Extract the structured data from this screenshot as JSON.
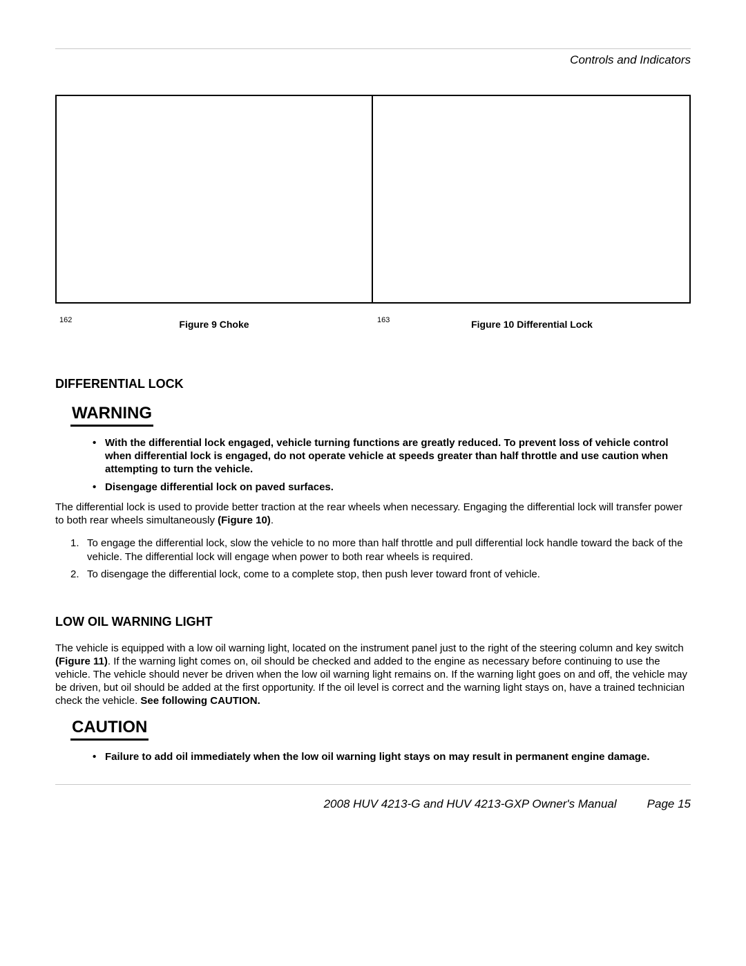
{
  "header": {
    "section_title": "Controls and Indicators"
  },
  "figures": {
    "left": {
      "num": "162",
      "caption": "Figure 9   Choke"
    },
    "right": {
      "num": "163",
      "caption": "Figure 10   Differential Lock"
    }
  },
  "diff_lock": {
    "heading": "DIFFERENTIAL LOCK",
    "warning_label": "WARNING",
    "warning_items": [
      "With the differential lock engaged, vehicle turning functions are greatly reduced. To prevent loss of vehicle control when differential lock is engaged, do not operate vehicle at speeds greater than half throttle and use caution when attempting to turn the vehicle.",
      "Disengage differential lock on paved surfaces."
    ],
    "intro_pre": "The differential lock is used to provide better traction at the rear wheels when necessary. Engaging the differential lock will transfer power to both rear wheels simultaneously ",
    "intro_figref": "(Figure 10)",
    "intro_post": ".",
    "steps": [
      "To engage the differential lock, slow the vehicle to no more than half throttle and pull differential lock handle toward the back of the vehicle. The differential lock will engage when power to both rear wheels is required.",
      "To disengage the differential lock, come to a complete stop, then push lever toward front of vehicle."
    ]
  },
  "low_oil": {
    "heading": "LOW OIL WARNING LIGHT",
    "para_pre": "The vehicle is equipped with a low oil warning light, located on the instrument panel just to the right of the steering column and key switch ",
    "para_figref": "(Figure 11)",
    "para_mid": ". If the warning light comes on, oil should be checked and added to the engine as necessary before continuing to use the vehicle. The vehicle should never be driven when the low oil warning light remains on. If the warning light goes on and off, the vehicle may be driven, but oil should be added at the first opportunity. If the oil level is correct and the warning light stays on, have a trained technician check the vehicle. ",
    "para_see": "See following CAUTION.",
    "caution_label": "CAUTION",
    "caution_items": [
      "Failure to add oil immediately when the low oil warning light stays on may result in permanent engine damage."
    ]
  },
  "footer": {
    "manual": "2008 HUV 4213-G and HUV 4213-GXP Owner's Manual",
    "page": "Page 15"
  }
}
